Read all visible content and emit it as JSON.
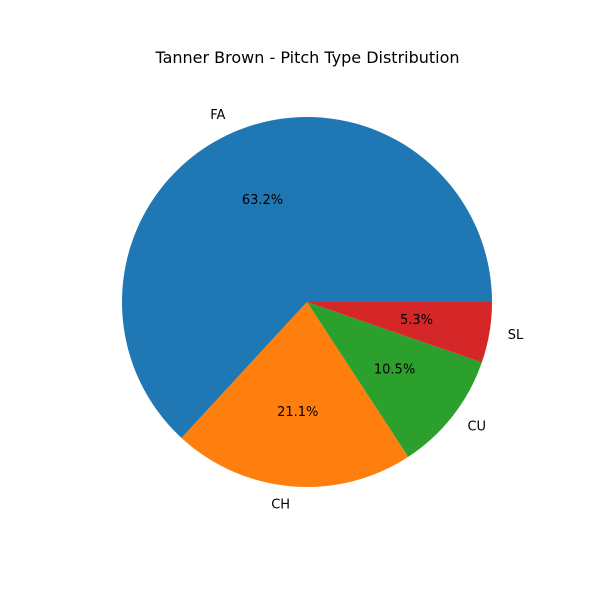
{
  "chart_data": {
    "type": "pie",
    "title": "Tanner Brown - Pitch Type Distribution",
    "categories": [
      "FA",
      "CH",
      "CU",
      "SL"
    ],
    "values": [
      63.2,
      21.1,
      10.5,
      5.3
    ],
    "percent_labels": [
      "63.2%",
      "21.1%",
      "10.5%",
      "5.3%"
    ],
    "colors": [
      "#1f77b4",
      "#ff7f0e",
      "#2ca02c",
      "#d62728"
    ],
    "start_angle_deg": 0,
    "direction": "counterclockwise",
    "legend": "none"
  }
}
